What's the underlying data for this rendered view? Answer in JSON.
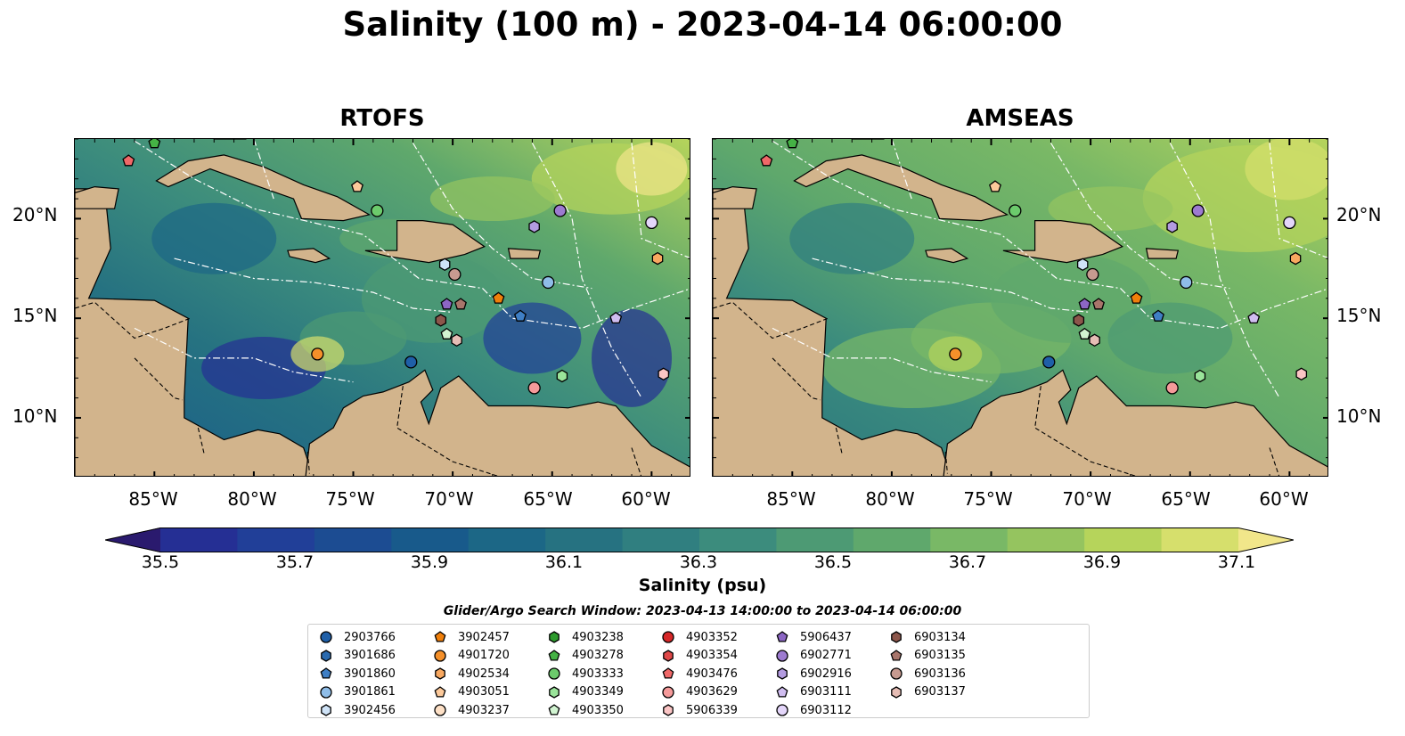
{
  "title": "Salinity (100 m) - 2023-04-14 06:00:00",
  "panels": [
    {
      "title": "RTOFS",
      "mode": "rtofs"
    },
    {
      "title": "AMSEAS",
      "mode": "amseas"
    }
  ],
  "map_extent": {
    "lon": [
      -89,
      -58
    ],
    "lat": [
      7,
      24
    ]
  },
  "lat_ticks": [
    "10°N",
    "15°N",
    "20°N"
  ],
  "lon_ticks": [
    "85°W",
    "80°W",
    "75°W",
    "70°W",
    "65°W",
    "60°W"
  ],
  "colors": {
    "land": "#d2b48c",
    "ocean_outside": "#9bb5de",
    "palette": [
      "#2a1a6e",
      "#252f94",
      "#213f98",
      "#1c4c92",
      "#185a8b",
      "#1c6786",
      "#267281",
      "#307f80",
      "#3c8c7d",
      "#4d9a74",
      "#5fa86c",
      "#79b866",
      "#95c45f",
      "#b6d45b",
      "#d6df6c",
      "#f1e68a"
    ]
  },
  "colorbar": {
    "ticks": [
      "35.5",
      "35.7",
      "35.9",
      "36.1",
      "36.3",
      "36.5",
      "36.7",
      "36.9",
      "37.1"
    ],
    "label": "Salinity (psu)"
  },
  "legend_title": "Glider/Argo Search Window: 2023-04-13 14:00:00 to 2023-04-14 06:00:00",
  "legend": [
    {
      "id": "2903766",
      "marker": "circle",
      "color": "#1f5fa8"
    },
    {
      "id": "3901686",
      "marker": "hexagon",
      "color": "#2a6aaf"
    },
    {
      "id": "3901860",
      "marker": "pentagon",
      "color": "#3f7fc5"
    },
    {
      "id": "3901861",
      "marker": "circle",
      "color": "#8fbde8"
    },
    {
      "id": "3902456",
      "marker": "hexagon",
      "color": "#cfe3f7"
    },
    {
      "id": "3902457",
      "marker": "pentagon",
      "color": "#f07f0a"
    },
    {
      "id": "4901720",
      "marker": "circle",
      "color": "#f5902a"
    },
    {
      "id": "4902534",
      "marker": "hexagon",
      "color": "#f8a860"
    },
    {
      "id": "4903051",
      "marker": "pentagon",
      "color": "#fcc99a"
    },
    {
      "id": "4903237",
      "marker": "circle",
      "color": "#fde0c6"
    },
    {
      "id": "4903238",
      "marker": "hexagon",
      "color": "#2c9a2c"
    },
    {
      "id": "4903278",
      "marker": "pentagon",
      "color": "#45b245"
    },
    {
      "id": "4903333",
      "marker": "circle",
      "color": "#6ccb6c"
    },
    {
      "id": "4903349",
      "marker": "hexagon",
      "color": "#9ae49a"
    },
    {
      "id": "4903350",
      "marker": "pentagon",
      "color": "#d2f5d2"
    },
    {
      "id": "4903352",
      "marker": "circle",
      "color": "#d62728"
    },
    {
      "id": "4903354",
      "marker": "hexagon",
      "color": "#e04848"
    },
    {
      "id": "4903476",
      "marker": "pentagon",
      "color": "#f06868"
    },
    {
      "id": "4903629",
      "marker": "circle",
      "color": "#f59a9a"
    },
    {
      "id": "5906339",
      "marker": "hexagon",
      "color": "#fbc5c5"
    },
    {
      "id": "5906437",
      "marker": "pentagon",
      "color": "#8c66c4"
    },
    {
      "id": "6902771",
      "marker": "circle",
      "color": "#9d7bd0"
    },
    {
      "id": "6902916",
      "marker": "hexagon",
      "color": "#b39be0"
    },
    {
      "id": "6903111",
      "marker": "pentagon",
      "color": "#d0bdf0"
    },
    {
      "id": "6903112",
      "marker": "circle",
      "color": "#e4d6fa"
    },
    {
      "id": "6903134",
      "marker": "hexagon",
      "color": "#8c564b"
    },
    {
      "id": "6903135",
      "marker": "pentagon",
      "color": "#a8756b"
    },
    {
      "id": "6903136",
      "marker": "circle",
      "color": "#c79a90"
    },
    {
      "id": "6903137",
      "marker": "hexagon",
      "color": "#e6bdb5"
    }
  ],
  "floats": [
    {
      "marker": "pentagon",
      "color": "#f06868",
      "lon": -86.3,
      "lat": 22.9
    },
    {
      "marker": "pentagon",
      "color": "#45b245",
      "lon": -85.0,
      "lat": 23.8
    },
    {
      "marker": "pentagon",
      "color": "#fcc99a",
      "lon": -74.8,
      "lat": 21.6
    },
    {
      "marker": "circle",
      "color": "#6ccb6c",
      "lon": -73.8,
      "lat": 20.4
    },
    {
      "marker": "hexagon",
      "color": "#cfe3f7",
      "lon": -70.4,
      "lat": 17.7
    },
    {
      "marker": "circle",
      "color": "#c79a90",
      "lon": -69.9,
      "lat": 17.2
    },
    {
      "marker": "pentagon",
      "color": "#8c66c4",
      "lon": -70.3,
      "lat": 15.7
    },
    {
      "marker": "pentagon",
      "color": "#a8756b",
      "lon": -69.6,
      "lat": 15.7
    },
    {
      "marker": "hexagon",
      "color": "#8c564b",
      "lon": -70.6,
      "lat": 14.9
    },
    {
      "marker": "pentagon",
      "color": "#d2f5d2",
      "lon": -70.3,
      "lat": 14.2
    },
    {
      "marker": "hexagon",
      "color": "#e6bdb5",
      "lon": -69.8,
      "lat": 13.9
    },
    {
      "marker": "pentagon",
      "color": "#f07f0a",
      "lon": -67.7,
      "lat": 16.0
    },
    {
      "marker": "circle",
      "color": "#8fbde8",
      "lon": -65.2,
      "lat": 16.8
    },
    {
      "marker": "pentagon",
      "color": "#3f7fc5",
      "lon": -66.6,
      "lat": 15.1
    },
    {
      "marker": "circle",
      "color": "#f5902a",
      "lon": -76.8,
      "lat": 13.2
    },
    {
      "marker": "circle",
      "color": "#1f5fa8",
      "lon": -72.1,
      "lat": 12.8
    },
    {
      "marker": "circle",
      "color": "#f59a9a",
      "lon": -65.9,
      "lat": 11.5
    },
    {
      "marker": "hexagon",
      "color": "#9ae49a",
      "lon": -64.5,
      "lat": 12.1
    },
    {
      "marker": "hexagon",
      "color": "#b39be0",
      "lon": -65.9,
      "lat": 19.6
    },
    {
      "marker": "circle",
      "color": "#9d7bd0",
      "lon": -64.6,
      "lat": 20.4
    },
    {
      "marker": "circle",
      "color": "#e4d6fa",
      "lon": -60.0,
      "lat": 19.8
    },
    {
      "marker": "hexagon",
      "color": "#f8a860",
      "lon": -59.7,
      "lat": 18.0
    },
    {
      "marker": "pentagon",
      "color": "#d0bdf0",
      "lon": -61.8,
      "lat": 15.0
    },
    {
      "marker": "hexagon",
      "color": "#fbc5c5",
      "lon": -59.4,
      "lat": 12.2
    }
  ]
}
